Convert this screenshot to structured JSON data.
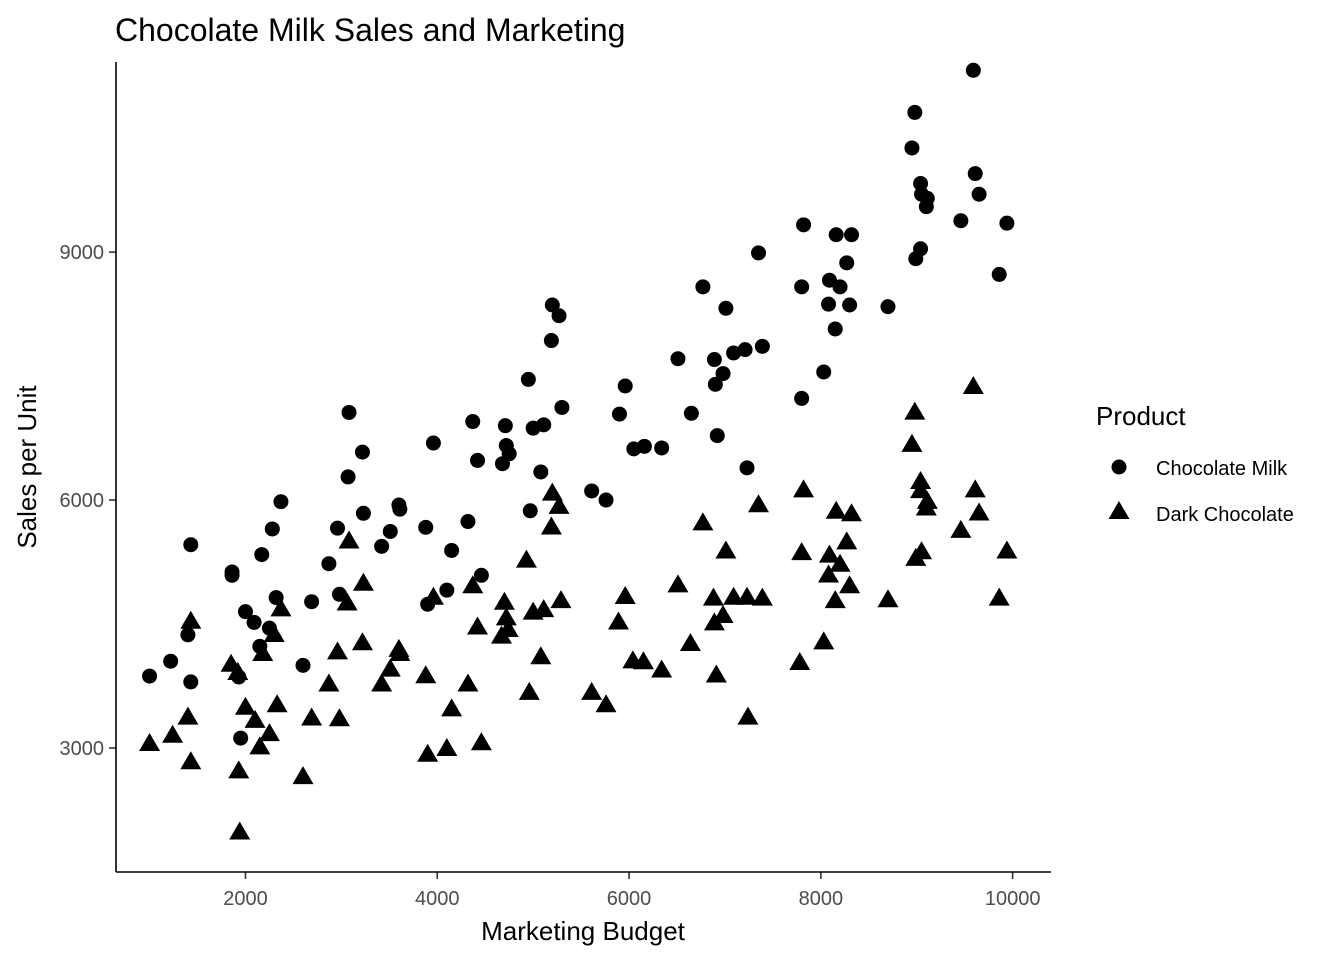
{
  "chart_data": {
    "type": "scatter",
    "title": "Chocolate Milk Sales and Marketing",
    "xlabel": "Marketing Budget",
    "ylabel": "Sales per Unit",
    "xlim": [
      650,
      10400
    ],
    "ylim": [
      1500,
      11300
    ],
    "xticks": [
      2000,
      4000,
      6000,
      8000,
      10000
    ],
    "yticks": [
      3000,
      6000,
      9000
    ],
    "grid": false,
    "legend": {
      "title": "Product",
      "placement": "right"
    },
    "series": [
      {
        "name": "Chocolate Milk",
        "marker": "circle",
        "color": "#000000",
        "points": [
          [
            1000,
            3870
          ],
          [
            1220,
            4050
          ],
          [
            1400,
            4370
          ],
          [
            1430,
            5460
          ],
          [
            1430,
            3800
          ],
          [
            1860,
            5130
          ],
          [
            1860,
            5090
          ],
          [
            1930,
            3860
          ],
          [
            1950,
            3120
          ],
          [
            2000,
            4650
          ],
          [
            2090,
            4520
          ],
          [
            2150,
            4230
          ],
          [
            2170,
            5340
          ],
          [
            2250,
            4450
          ],
          [
            2280,
            5650
          ],
          [
            2320,
            4820
          ],
          [
            2370,
            5980
          ],
          [
            2600,
            4000
          ],
          [
            2690,
            4770
          ],
          [
            2870,
            5230
          ],
          [
            2960,
            5660
          ],
          [
            2980,
            4860
          ],
          [
            3070,
            6280
          ],
          [
            3080,
            7060
          ],
          [
            3220,
            6580
          ],
          [
            3230,
            5840
          ],
          [
            3420,
            5440
          ],
          [
            3510,
            5620
          ],
          [
            3600,
            5940
          ],
          [
            3610,
            5890
          ],
          [
            3880,
            5670
          ],
          [
            3900,
            4740
          ],
          [
            3960,
            6690
          ],
          [
            4100,
            4910
          ],
          [
            4150,
            5390
          ],
          [
            4320,
            5740
          ],
          [
            4370,
            6950
          ],
          [
            4420,
            6480
          ],
          [
            4460,
            5090
          ],
          [
            4680,
            6440
          ],
          [
            4710,
            6900
          ],
          [
            4720,
            6660
          ],
          [
            4750,
            6560
          ],
          [
            4950,
            7460
          ],
          [
            4970,
            5870
          ],
          [
            5000,
            6870
          ],
          [
            5080,
            6340
          ],
          [
            5110,
            6910
          ],
          [
            5190,
            7930
          ],
          [
            5200,
            8360
          ],
          [
            5270,
            8230
          ],
          [
            5300,
            7120
          ],
          [
            5610,
            6110
          ],
          [
            5760,
            6000
          ],
          [
            5900,
            7040
          ],
          [
            5960,
            7380
          ],
          [
            6050,
            6620
          ],
          [
            6160,
            6650
          ],
          [
            6340,
            6630
          ],
          [
            6510,
            7710
          ],
          [
            6650,
            7050
          ],
          [
            6770,
            8580
          ],
          [
            6890,
            7700
          ],
          [
            6900,
            7400
          ],
          [
            6920,
            6780
          ],
          [
            6980,
            7530
          ],
          [
            7010,
            8320
          ],
          [
            7090,
            7780
          ],
          [
            7210,
            7820
          ],
          [
            7230,
            6390
          ],
          [
            7350,
            8990
          ],
          [
            7390,
            7860
          ],
          [
            7800,
            7230
          ],
          [
            7800,
            8580
          ],
          [
            7820,
            9330
          ],
          [
            8030,
            7550
          ],
          [
            8080,
            8370
          ],
          [
            8090,
            8660
          ],
          [
            8150,
            8070
          ],
          [
            8160,
            9210
          ],
          [
            8200,
            8580
          ],
          [
            8270,
            8870
          ],
          [
            8300,
            8360
          ],
          [
            8320,
            9210
          ],
          [
            8700,
            8340
          ],
          [
            8950,
            10260
          ],
          [
            8980,
            10690
          ],
          [
            8990,
            8920
          ],
          [
            9040,
            9040
          ],
          [
            9040,
            9830
          ],
          [
            9050,
            9700
          ],
          [
            9100,
            9550
          ],
          [
            9110,
            9650
          ],
          [
            9460,
            9380
          ],
          [
            9590,
            11200
          ],
          [
            9610,
            9950
          ],
          [
            9650,
            9700
          ],
          [
            9860,
            8730
          ],
          [
            9940,
            9350
          ]
        ]
      },
      {
        "name": "Dark Chocolate",
        "marker": "triangle",
        "color": "#000000",
        "points": [
          [
            1000,
            3060
          ],
          [
            1240,
            3160
          ],
          [
            1400,
            3380
          ],
          [
            1430,
            4540
          ],
          [
            1430,
            2840
          ],
          [
            1850,
            4020
          ],
          [
            1920,
            3920
          ],
          [
            1930,
            2730
          ],
          [
            1940,
            1990
          ],
          [
            2000,
            3500
          ],
          [
            2100,
            3340
          ],
          [
            2150,
            3020
          ],
          [
            2180,
            4150
          ],
          [
            2250,
            3180
          ],
          [
            2300,
            4380
          ],
          [
            2330,
            3530
          ],
          [
            2370,
            4690
          ],
          [
            2600,
            2660
          ],
          [
            2690,
            3370
          ],
          [
            2870,
            3780
          ],
          [
            2960,
            4170
          ],
          [
            2980,
            3360
          ],
          [
            3060,
            4760
          ],
          [
            3080,
            5510
          ],
          [
            3220,
            4280
          ],
          [
            3230,
            5000
          ],
          [
            3420,
            3780
          ],
          [
            3510,
            3960
          ],
          [
            3600,
            4200
          ],
          [
            3610,
            4150
          ],
          [
            3880,
            3880
          ],
          [
            3900,
            2930
          ],
          [
            3960,
            4830
          ],
          [
            4100,
            3000
          ],
          [
            4150,
            3480
          ],
          [
            4320,
            3780
          ],
          [
            4370,
            4970
          ],
          [
            4420,
            4470
          ],
          [
            4460,
            3070
          ],
          [
            4670,
            4360
          ],
          [
            4700,
            4770
          ],
          [
            4720,
            4580
          ],
          [
            4740,
            4440
          ],
          [
            4930,
            5280
          ],
          [
            4960,
            3680
          ],
          [
            5000,
            4650
          ],
          [
            5080,
            4110
          ],
          [
            5110,
            4680
          ],
          [
            5190,
            5680
          ],
          [
            5200,
            6090
          ],
          [
            5270,
            5930
          ],
          [
            5290,
            4790
          ],
          [
            5610,
            3680
          ],
          [
            5760,
            3530
          ],
          [
            5890,
            4530
          ],
          [
            5960,
            4840
          ],
          [
            6040,
            4060
          ],
          [
            6150,
            4050
          ],
          [
            6340,
            3950
          ],
          [
            6510,
            4980
          ],
          [
            6640,
            4270
          ],
          [
            6770,
            5730
          ],
          [
            6880,
            4820
          ],
          [
            6890,
            4520
          ],
          [
            6910,
            3890
          ],
          [
            6980,
            4610
          ],
          [
            7010,
            5390
          ],
          [
            7090,
            4830
          ],
          [
            7230,
            4830
          ],
          [
            7240,
            3380
          ],
          [
            7350,
            5950
          ],
          [
            7390,
            4820
          ],
          [
            7780,
            4040
          ],
          [
            7800,
            5370
          ],
          [
            7820,
            6130
          ],
          [
            8030,
            4290
          ],
          [
            8080,
            5100
          ],
          [
            8090,
            5340
          ],
          [
            8150,
            4790
          ],
          [
            8160,
            5870
          ],
          [
            8200,
            5230
          ],
          [
            8270,
            5500
          ],
          [
            8300,
            4970
          ],
          [
            8320,
            5840
          ],
          [
            8700,
            4800
          ],
          [
            8950,
            6680
          ],
          [
            8980,
            7070
          ],
          [
            8990,
            5300
          ],
          [
            9040,
            6230
          ],
          [
            9040,
            6120
          ],
          [
            9050,
            5380
          ],
          [
            9100,
            5910
          ],
          [
            9110,
            5990
          ],
          [
            9460,
            5640
          ],
          [
            9590,
            7380
          ],
          [
            9610,
            6130
          ],
          [
            9650,
            5850
          ],
          [
            9860,
            4820
          ],
          [
            9940,
            5390
          ]
        ]
      }
    ]
  }
}
